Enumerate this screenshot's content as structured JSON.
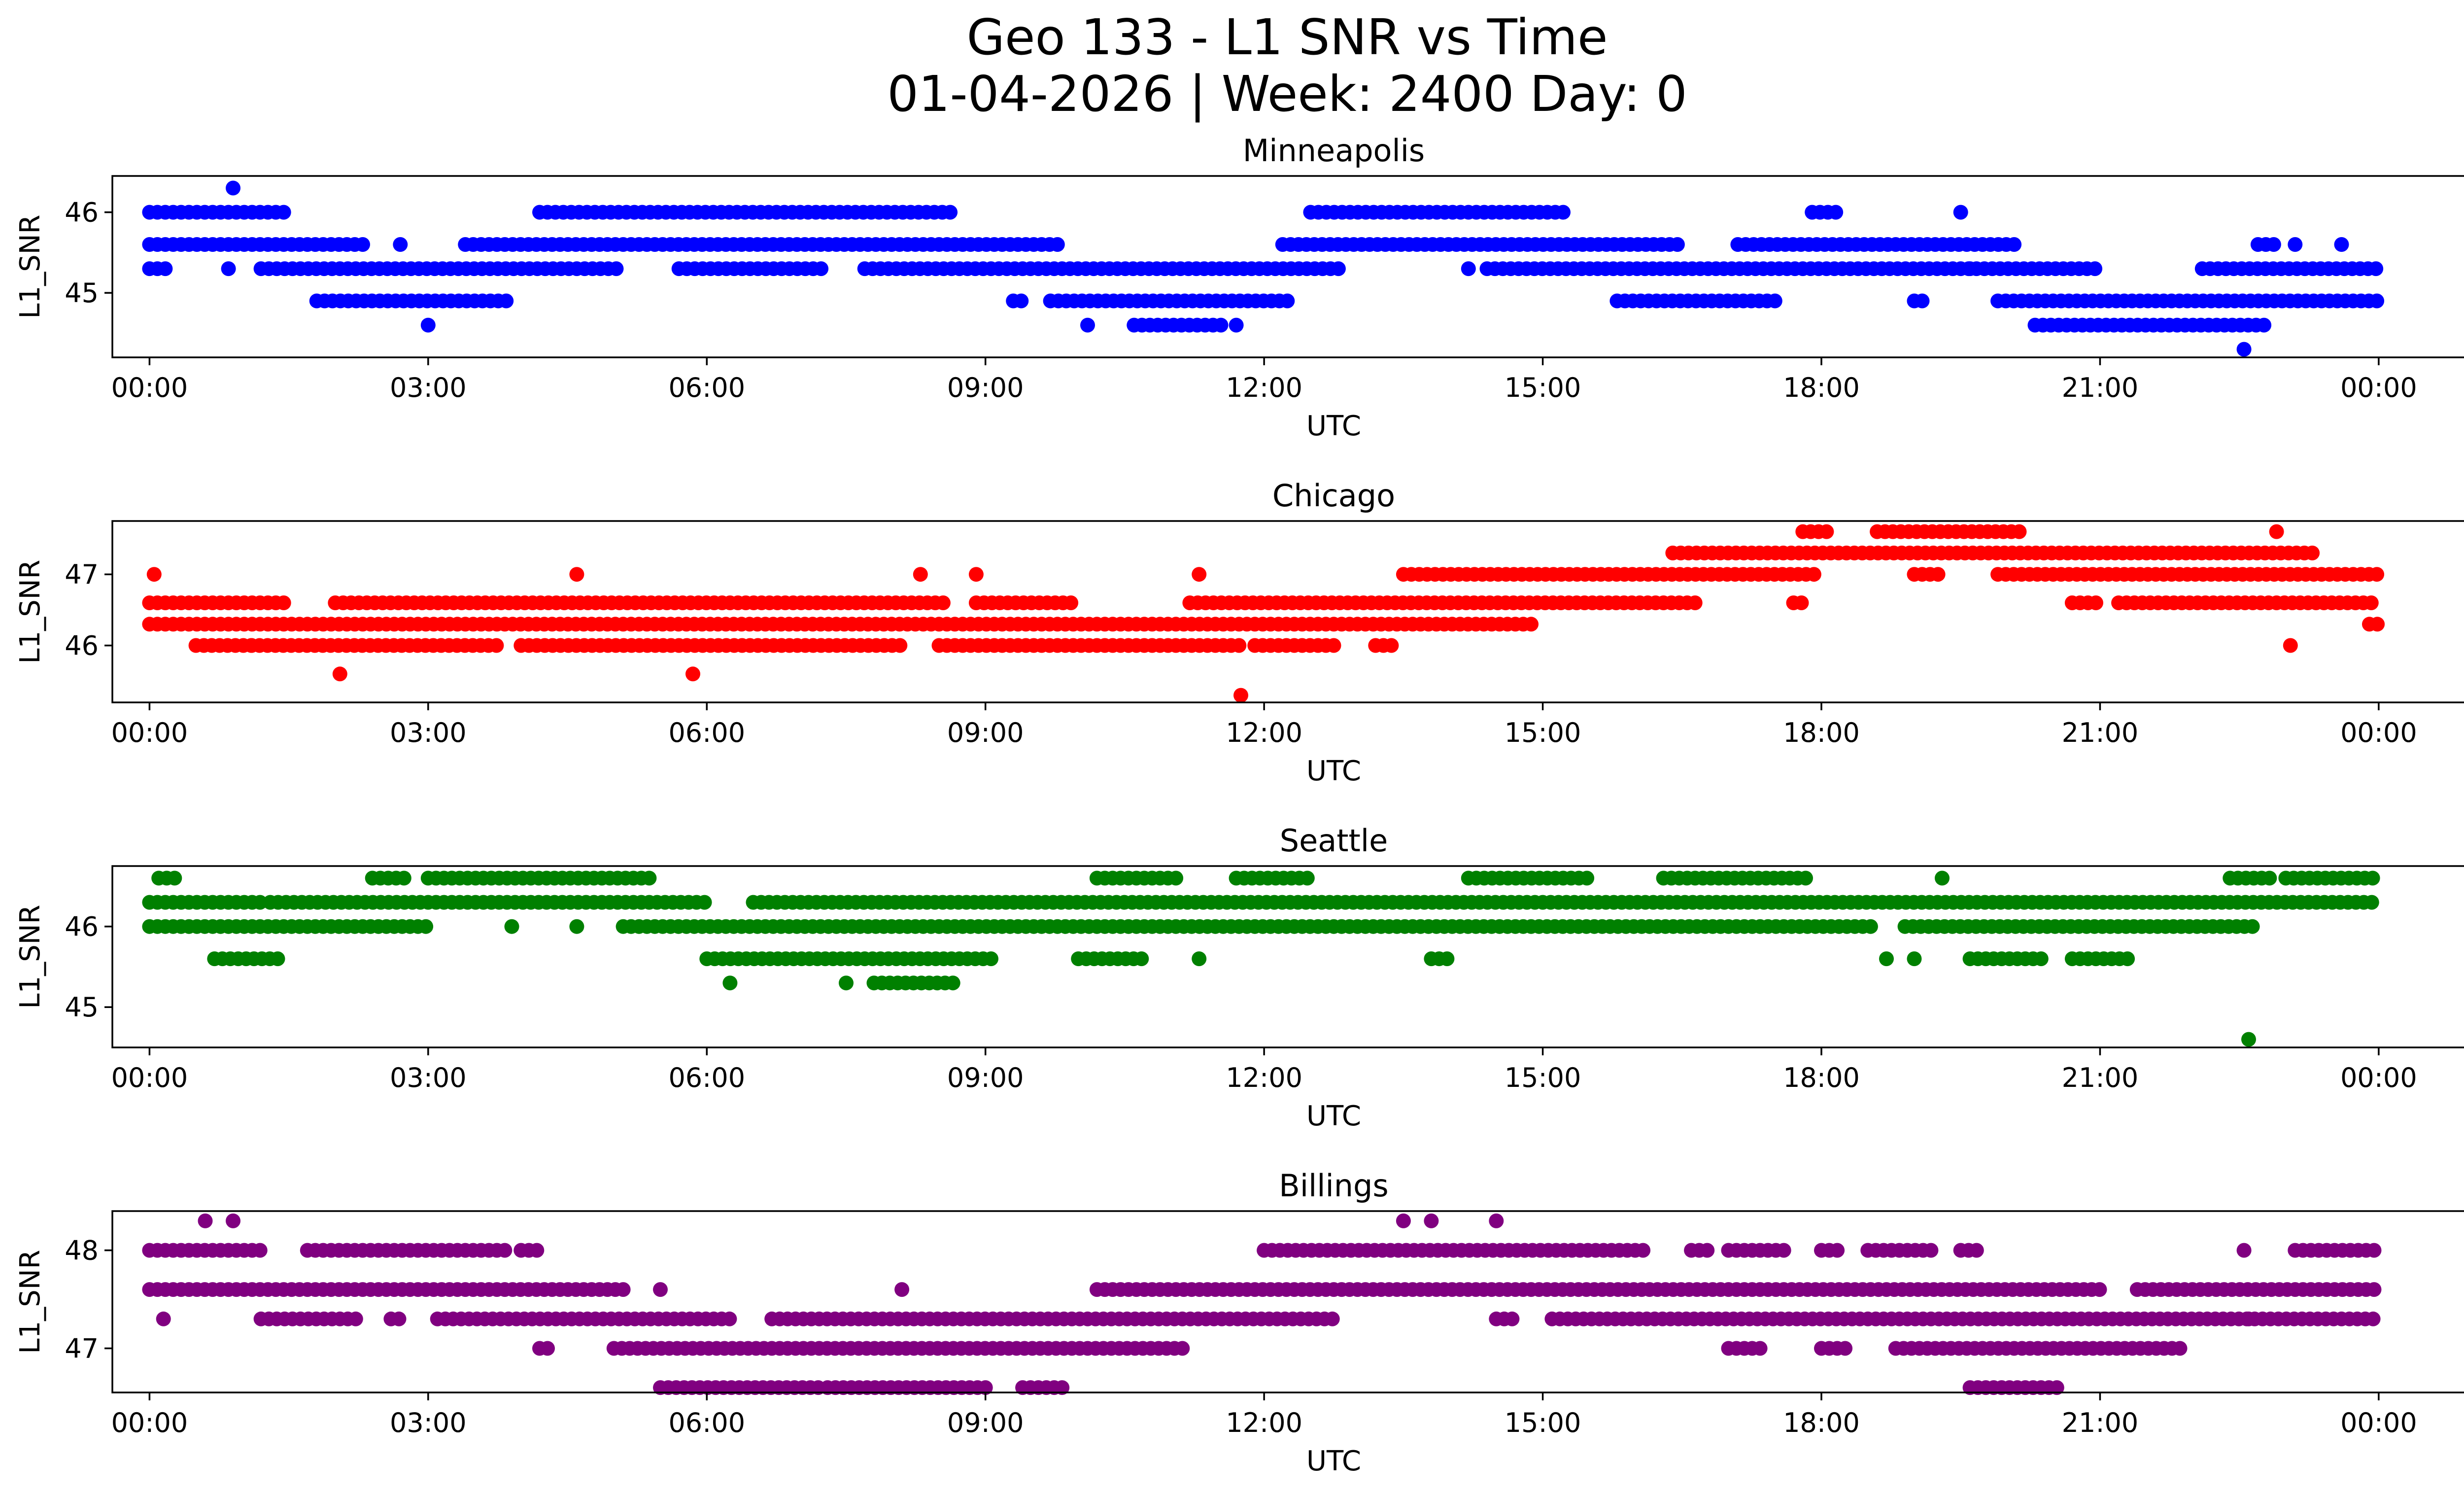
{
  "figure": {
    "title_line1": "Geo 133 - L1 SNR vs Time",
    "title_line2": "01-04-2026 | Week: 2400 Day: 0"
  },
  "chart_data": [
    {
      "type": "scatter",
      "title": "Minneapolis",
      "color": "#0000ff",
      "xlabel": "UTC",
      "ylabel": "L1_SNR",
      "xlim_hours": [
        -0.4,
        25.9
      ],
      "ylim": [
        44.2,
        46.45
      ],
      "xticks": [
        "00:00",
        "03:00",
        "06:00",
        "09:00",
        "12:00",
        "15:00",
        "18:00",
        "21:00",
        "00:00"
      ],
      "yticks": [
        {
          "value": 45,
          "label": "45"
        },
        {
          "value": 46,
          "label": "46"
        }
      ],
      "runs": [
        {
          "y": 46.0,
          "segments": [
            [
              0.0,
              1.5
            ],
            [
              4.2,
              8.7
            ],
            [
              12.5,
              15.3
            ],
            [
              17.9,
              18.2
            ]
          ]
        },
        {
          "y": 45.6,
          "segments": [
            [
              0.0,
              2.3
            ],
            [
              3.4,
              9.8
            ],
            [
              12.2,
              16.5
            ],
            [
              17.1,
              20.1
            ],
            [
              22.7,
              22.9
            ]
          ]
        },
        {
          "y": 45.3,
          "segments": [
            [
              0.0,
              0.2
            ],
            [
              1.2,
              5.1
            ],
            [
              5.7,
              7.3
            ],
            [
              7.7,
              12.8
            ],
            [
              14.4,
              21.0
            ],
            [
              22.1,
              24.0
            ]
          ]
        },
        {
          "y": 44.9,
          "segments": [
            [
              1.8,
              3.9
            ],
            [
              9.3,
              9.4
            ],
            [
              9.7,
              12.3
            ],
            [
              15.8,
              17.5
            ],
            [
              19.0,
              19.1
            ],
            [
              19.9,
              24.0
            ]
          ]
        },
        {
          "y": 44.6,
          "segments": [
            [
              10.6,
              11.6
            ],
            [
              20.3,
              22.8
            ]
          ]
        }
      ],
      "points": [
        {
          "x": 0.9,
          "y": 46.3
        },
        {
          "x": 19.5,
          "y": 46.0
        },
        {
          "x": 0.85,
          "y": 45.3
        },
        {
          "x": 2.7,
          "y": 45.6
        },
        {
          "x": 3.0,
          "y": 44.6
        },
        {
          "x": 10.1,
          "y": 44.6
        },
        {
          "x": 11.7,
          "y": 44.6
        },
        {
          "x": 14.2,
          "y": 45.3
        },
        {
          "x": 19.6,
          "y": 45.3
        },
        {
          "x": 22.55,
          "y": 44.3
        },
        {
          "x": 23.1,
          "y": 45.6
        },
        {
          "x": 23.6,
          "y": 45.6
        }
      ]
    },
    {
      "type": "scatter",
      "title": "Chicago",
      "color": "#ff0000",
      "xlabel": "UTC",
      "ylabel": "L1_SNR",
      "xlim_hours": [
        -0.4,
        25.9
      ],
      "ylim": [
        45.2,
        47.75
      ],
      "xticks": [
        "00:00",
        "03:00",
        "06:00",
        "09:00",
        "12:00",
        "15:00",
        "18:00",
        "21:00",
        "00:00"
      ],
      "yticks": [
        {
          "value": 46,
          "label": "46"
        },
        {
          "value": 47,
          "label": "47"
        }
      ],
      "runs": [
        {
          "y": 47.6,
          "segments": [
            [
              17.8,
              18.1
            ],
            [
              18.6,
              20.2
            ]
          ]
        },
        {
          "y": 47.3,
          "segments": [
            [
              16.4,
              23.3
            ]
          ]
        },
        {
          "y": 47.0,
          "segments": [
            [
              13.5,
              18.0
            ],
            [
              19.0,
              19.3
            ],
            [
              19.9,
              24.0
            ]
          ]
        },
        {
          "y": 46.6,
          "segments": [
            [
              0.0,
              1.5
            ],
            [
              2.0,
              8.6
            ],
            [
              8.9,
              10.0
            ],
            [
              11.2,
              16.7
            ],
            [
              17.7,
              17.8
            ],
            [
              20.7,
              21.0
            ],
            [
              21.2,
              24.0
            ]
          ]
        },
        {
          "y": 46.3,
          "segments": [
            [
              0.0,
              14.9
            ],
            [
              23.9,
              24.0
            ]
          ]
        },
        {
          "y": 46.0,
          "segments": [
            [
              0.5,
              1.1
            ],
            [
              1.1,
              3.8
            ],
            [
              4.0,
              8.1
            ],
            [
              8.5,
              11.8
            ],
            [
              11.9,
              12.8
            ],
            [
              13.2,
              13.4
            ]
          ]
        }
      ],
      "points": [
        {
          "x": 0.05,
          "y": 47.0
        },
        {
          "x": 4.6,
          "y": 47.0
        },
        {
          "x": 8.3,
          "y": 47.0
        },
        {
          "x": 8.9,
          "y": 47.0
        },
        {
          "x": 11.3,
          "y": 47.0
        },
        {
          "x": 2.05,
          "y": 45.6
        },
        {
          "x": 5.85,
          "y": 45.6
        },
        {
          "x": 11.75,
          "y": 45.3
        },
        {
          "x": 22.9,
          "y": 47.6
        },
        {
          "x": 23.05,
          "y": 46.0
        }
      ]
    },
    {
      "type": "scatter",
      "title": "Seattle",
      "color": "#008000",
      "xlabel": "UTC",
      "ylabel": "L1_SNR",
      "xlim_hours": [
        -0.4,
        25.9
      ],
      "ylim": [
        44.5,
        46.75
      ],
      "xticks": [
        "00:00",
        "03:00",
        "06:00",
        "09:00",
        "12:00",
        "15:00",
        "18:00",
        "21:00",
        "00:00"
      ],
      "yticks": [
        {
          "value": 45,
          "label": "45"
        },
        {
          "value": 46,
          "label": "46"
        }
      ],
      "runs": [
        {
          "y": 46.6,
          "segments": [
            [
              0.1,
              0.3
            ],
            [
              2.4,
              2.8
            ],
            [
              3.0,
              5.4
            ],
            [
              10.2,
              11.1
            ],
            [
              11.7,
              12.5
            ],
            [
              14.2,
              15.5
            ],
            [
              16.3,
              17.9
            ],
            [
              22.4,
              22.9
            ],
            [
              23.0,
              24.0
            ]
          ]
        },
        {
          "y": 46.3,
          "segments": [
            [
              0.0,
              1.2
            ],
            [
              1.3,
              6.0
            ],
            [
              6.5,
              24.0
            ]
          ]
        },
        {
          "y": 46.0,
          "segments": [
            [
              0.0,
              3.0
            ],
            [
              5.1,
              18.6
            ],
            [
              18.9,
              22.7
            ]
          ]
        },
        {
          "y": 45.6,
          "segments": [
            [
              0.7,
              1.4
            ],
            [
              6.0,
              9.1
            ],
            [
              10.0,
              10.7
            ],
            [
              13.8,
              14.0
            ],
            [
              19.6,
              20.4
            ],
            [
              20.7,
              21.3
            ]
          ]
        },
        {
          "y": 45.3,
          "segments": [
            [
              7.8,
              8.7
            ]
          ]
        }
      ],
      "points": [
        {
          "x": 3.9,
          "y": 46.0
        },
        {
          "x": 4.6,
          "y": 46.0
        },
        {
          "x": 6.25,
          "y": 45.3
        },
        {
          "x": 7.5,
          "y": 45.3
        },
        {
          "x": 11.3,
          "y": 45.6
        },
        {
          "x": 18.7,
          "y": 45.6
        },
        {
          "x": 19.0,
          "y": 45.6
        },
        {
          "x": 22.6,
          "y": 44.6
        },
        {
          "x": 19.3,
          "y": 46.6
        }
      ]
    },
    {
      "type": "scatter",
      "title": "Billings",
      "color": "#800080",
      "xlabel": "UTC",
      "ylabel": "L1_SNR",
      "xlim_hours": [
        -0.4,
        25.9
      ],
      "ylim": [
        46.55,
        48.4
      ],
      "xticks": [
        "00:00",
        "03:00",
        "06:00",
        "09:00",
        "12:00",
        "15:00",
        "18:00",
        "21:00",
        "00:00"
      ],
      "yticks": [
        {
          "value": 47,
          "label": "47"
        },
        {
          "value": 48,
          "label": "48"
        }
      ],
      "runs": [
        {
          "y": 48.0,
          "segments": [
            [
              0.0,
              1.2
            ],
            [
              1.7,
              3.9
            ],
            [
              4.0,
              4.2
            ],
            [
              12.0,
              16.1
            ],
            [
              16.6,
              16.8
            ],
            [
              17.0,
              17.6
            ],
            [
              18.0,
              18.2
            ],
            [
              18.5,
              19.2
            ],
            [
              19.5,
              19.7
            ],
            [
              23.1,
              24.0
            ]
          ]
        },
        {
          "y": 47.6,
          "segments": [
            [
              0.0,
              5.1
            ],
            [
              10.2,
              21.0
            ],
            [
              21.4,
              24.0
            ]
          ]
        },
        {
          "y": 47.3,
          "segments": [
            [
              1.2,
              2.3
            ],
            [
              2.6,
              2.7
            ],
            [
              3.1,
              6.3
            ],
            [
              6.7,
              12.8
            ],
            [
              14.5,
              14.7
            ],
            [
              15.1,
              24.0
            ]
          ]
        },
        {
          "y": 47.0,
          "segments": [
            [
              4.2,
              4.3
            ],
            [
              5.0,
              11.2
            ],
            [
              17.0,
              17.4
            ],
            [
              18.0,
              18.3
            ],
            [
              18.8,
              21.9
            ]
          ]
        },
        {
          "y": 46.6,
          "segments": [
            [
              5.5,
              7.2
            ],
            [
              7.3,
              9.0
            ],
            [
              9.4,
              9.9
            ],
            [
              19.6,
              20.6
            ]
          ]
        }
      ],
      "points": [
        {
          "x": 0.6,
          "y": 48.3
        },
        {
          "x": 0.9,
          "y": 48.3
        },
        {
          "x": 13.5,
          "y": 48.3
        },
        {
          "x": 13.8,
          "y": 48.3
        },
        {
          "x": 14.5,
          "y": 48.3
        },
        {
          "x": 0.15,
          "y": 47.3
        },
        {
          "x": 5.5,
          "y": 47.6
        },
        {
          "x": 8.1,
          "y": 47.6
        },
        {
          "x": 22.55,
          "y": 48.0
        },
        {
          "x": 22.6,
          "y": 47.3
        }
      ]
    }
  ]
}
